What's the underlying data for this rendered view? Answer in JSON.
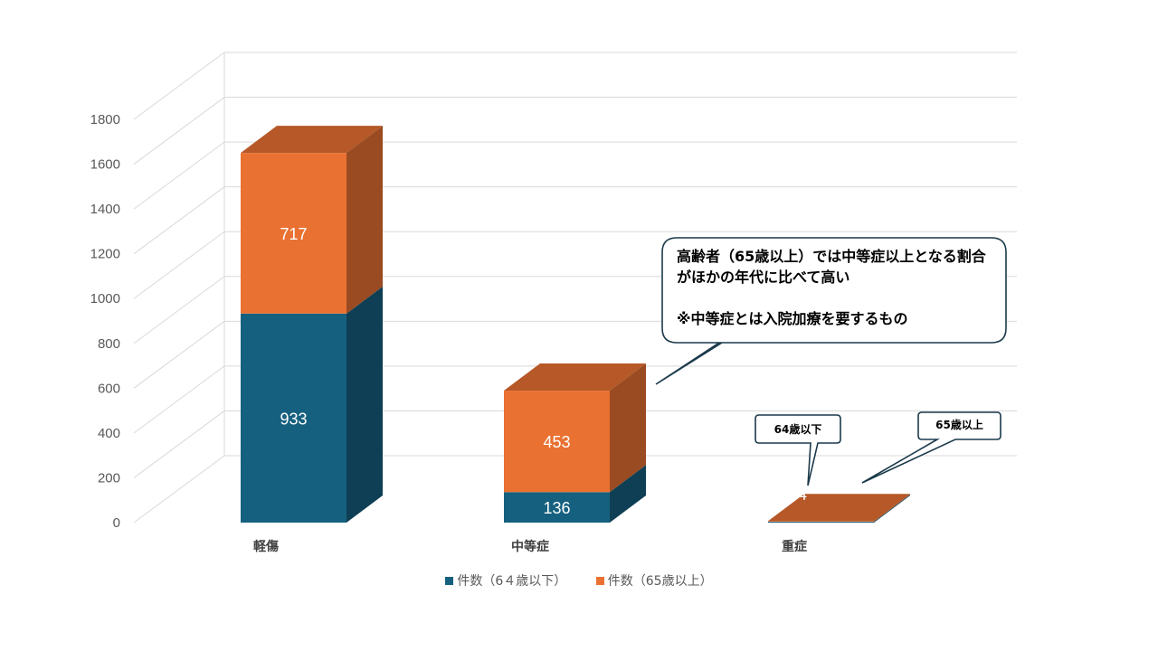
{
  "chart_data": {
    "type": "bar",
    "stacked": true,
    "three_d": true,
    "categories": [
      "軽傷",
      "中等症",
      "重症"
    ],
    "series": [
      {
        "name": "件数（6４歳以下）",
        "values": [
          933,
          136,
          4
        ],
        "color": "#16607F"
      },
      {
        "name": "件数（65歳以上）",
        "values": [
          717,
          453,
          3
        ],
        "color": "#E97132"
      }
    ],
    "yticks": [
      "0",
      "200",
      "400",
      "600",
      "800",
      "1000",
      "1200",
      "1400",
      "1600",
      "1800"
    ],
    "ylim": [
      0,
      1800
    ],
    "grid": true,
    "legend": "bottom"
  },
  "callouts": {
    "main": "高齢者（65歳以上）では中等症以上となる割合がほかの年代に比べて高い\n\n※中等症とは入院加療を要するもの",
    "under64": "64歳以下",
    "over65": "65歳以上"
  }
}
